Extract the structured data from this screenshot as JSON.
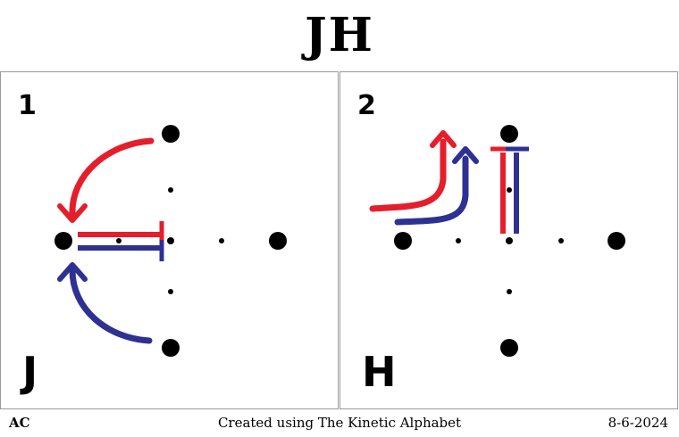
{
  "title": "JH",
  "panels": [
    {
      "number": "1",
      "letter": "J"
    },
    {
      "number": "2",
      "letter": "H"
    }
  ],
  "footer": {
    "author": "AC",
    "credit": "Created using The Kinetic Alphabet",
    "date": "8-6-2024"
  },
  "colors": {
    "red": "#e41e2b",
    "blue": "#2e3192",
    "dot": "#000000"
  }
}
